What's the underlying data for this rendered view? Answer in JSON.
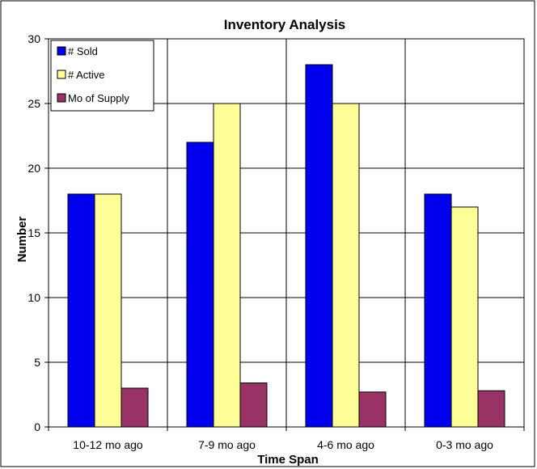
{
  "chart_data": {
    "type": "bar",
    "title": "Inventory Analysis",
    "xlabel": "Time Span",
    "ylabel": "Number",
    "categories": [
      "10-12 mo ago",
      "7-9 mo ago",
      "4-6 mo ago",
      "0-3 mo ago"
    ],
    "series": [
      {
        "name": "# Sold",
        "color": "#0000ee",
        "values": [
          18,
          22,
          28,
          18
        ]
      },
      {
        "name": "# Active",
        "color": "#ffff99",
        "values": [
          18,
          25,
          25,
          17
        ]
      },
      {
        "name": "Mo of Supply",
        "color": "#993366",
        "values": [
          3.0,
          3.4,
          2.7,
          2.8
        ]
      }
    ],
    "ylim": [
      0,
      30
    ],
    "yticks": [
      0,
      5,
      10,
      15,
      20,
      25,
      30
    ],
    "grid": true,
    "legend_position": "top-left"
  }
}
